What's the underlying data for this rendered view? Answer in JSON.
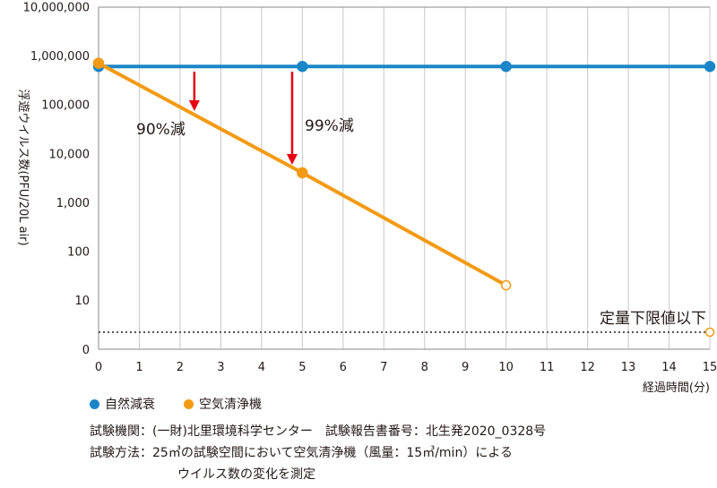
{
  "chart_data": {
    "type": "line",
    "x": [
      0,
      1,
      2,
      3,
      4,
      5,
      6,
      7,
      8,
      9,
      10,
      11,
      12,
      13,
      14,
      15
    ],
    "xticklabels": [
      "0",
      "1",
      "2",
      "3",
      "4",
      "5",
      "6",
      "7",
      "8",
      "9",
      "10",
      "11",
      "12",
      "13",
      "14",
      "15"
    ],
    "xlabel": "経過時間(分)",
    "ylabel": "浮遊ウイルス数(PFU/20L air)",
    "yscale": "log",
    "yticklabels": [
      "0",
      "10",
      "100",
      "1,000",
      "10,000",
      "100,000",
      "1,000,000",
      "10,000,000"
    ],
    "grid": "vertical",
    "series": [
      {
        "name": "自然減衰",
        "color": "#1a86c8",
        "x": [
          0,
          5,
          10,
          15
        ],
        "y": [
          600000,
          600000,
          600000,
          600000
        ]
      },
      {
        "name": "空気清浄機",
        "color": "#f39a14",
        "x": [
          0,
          5,
          10
        ],
        "y": [
          700000,
          4000,
          20
        ]
      }
    ],
    "threshold": {
      "label": "定量下限値以下",
      "color": "#555555"
    },
    "annotations": [
      {
        "text": "90%減",
        "color": "#e60012"
      },
      {
        "text": "99%減",
        "color": "#e60012"
      }
    ]
  },
  "legend": [
    {
      "label": "自然減衰",
      "color": "#1a86c8"
    },
    {
      "label": "空気清浄機",
      "color": "#f39a14"
    }
  ],
  "notes": {
    "line1": "試験機関：(一財)北里環境科学センター　試験報告書番号：北生発2020_0328号",
    "line2": "試験方法：25㎥の試験空間において空気清浄機（風量：15㎥/min）による",
    "line3": "ウイルス数の変化を測定"
  }
}
